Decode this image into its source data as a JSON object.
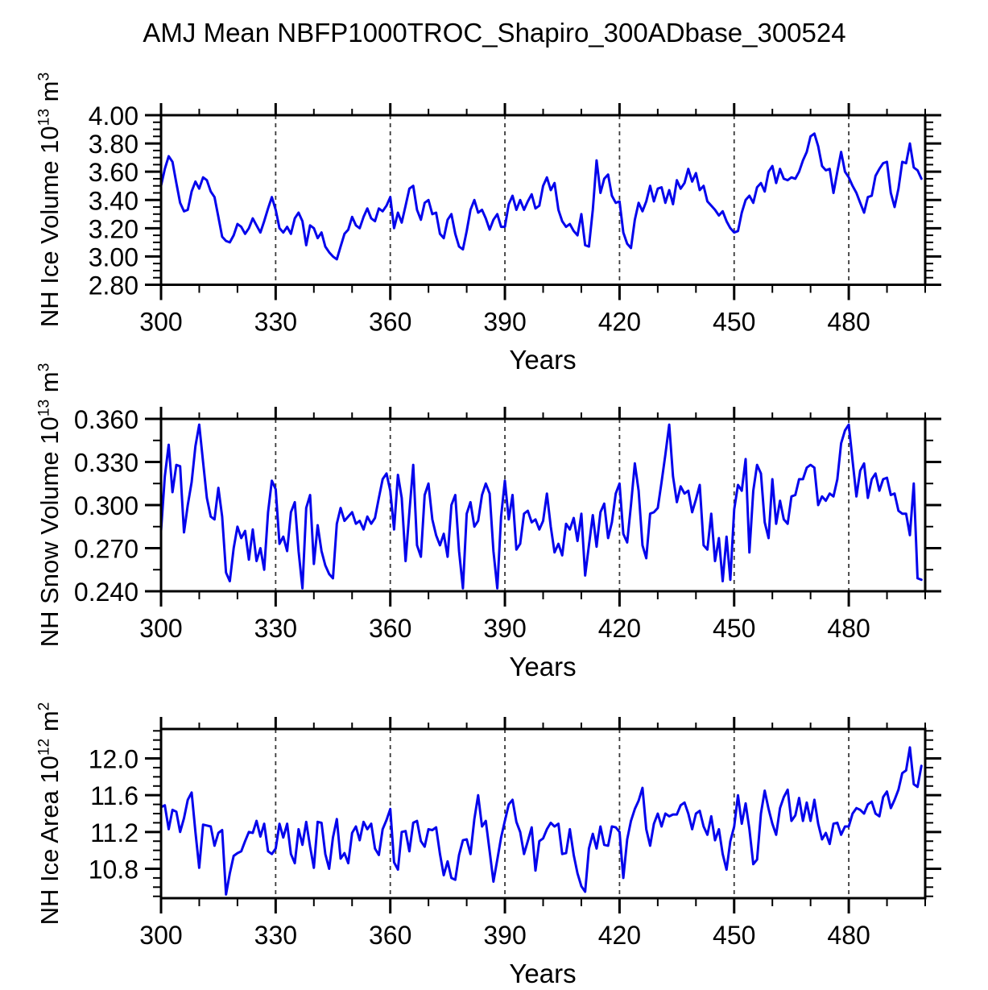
{
  "title": "AMJ Mean NBFP1000TROC_Shapiro_300ADbase_300524",
  "colors": {
    "line": "#0404EC",
    "frame": "#000000",
    "grid": "#3a3a3a",
    "background": "#ffffff"
  },
  "chart_data": [
    {
      "type": "line",
      "name": "nh-ice-volume",
      "ylabel": {
        "base": "NH Ice Volume 10",
        "exp": "13",
        "unit": " m",
        "unit_exp": "3"
      },
      "xlabel": "Years",
      "line_color": "#0404EC",
      "xlim": [
        300,
        500
      ],
      "ylim": [
        2.8,
        4.0
      ],
      "xticks": [
        300,
        330,
        360,
        390,
        420,
        450,
        480
      ],
      "xtick_labels": [
        "300",
        "330",
        "360",
        "390",
        "420",
        "450",
        "480"
      ],
      "xminor_step": 10,
      "ytick_values": [
        2.8,
        3.0,
        3.2,
        3.4,
        3.6,
        3.8,
        4.0
      ],
      "ytick_labels": [
        "2.80",
        "3.00",
        "3.20",
        "3.40",
        "3.60",
        "3.80",
        "4.00"
      ],
      "yminor_step": 0.05,
      "grid_years": [
        330,
        360,
        390,
        420,
        450,
        480
      ],
      "x_start": 300,
      "x_step": 1,
      "values": [
        3.5,
        3.62,
        3.71,
        3.67,
        3.52,
        3.38,
        3.32,
        3.33,
        3.46,
        3.53,
        3.48,
        3.56,
        3.54,
        3.46,
        3.42,
        3.28,
        3.14,
        3.11,
        3.1,
        3.15,
        3.23,
        3.21,
        3.16,
        3.2,
        3.27,
        3.22,
        3.17,
        3.25,
        3.34,
        3.42,
        3.33,
        3.2,
        3.17,
        3.21,
        3.16,
        3.27,
        3.31,
        3.25,
        3.08,
        3.22,
        3.2,
        3.13,
        3.17,
        3.07,
        3.03,
        3.0,
        2.98,
        3.07,
        3.16,
        3.19,
        3.28,
        3.22,
        3.2,
        3.28,
        3.34,
        3.27,
        3.25,
        3.34,
        3.32,
        3.36,
        3.42,
        3.2,
        3.31,
        3.24,
        3.36,
        3.48,
        3.5,
        3.33,
        3.26,
        3.38,
        3.4,
        3.3,
        3.31,
        3.16,
        3.13,
        3.26,
        3.3,
        3.16,
        3.07,
        3.05,
        3.18,
        3.33,
        3.4,
        3.31,
        3.33,
        3.27,
        3.19,
        3.26,
        3.3,
        3.21,
        3.21,
        3.37,
        3.43,
        3.33,
        3.4,
        3.33,
        3.39,
        3.44,
        3.34,
        3.36,
        3.5,
        3.56,
        3.47,
        3.52,
        3.33,
        3.25,
        3.21,
        3.23,
        3.18,
        3.15,
        3.3,
        3.08,
        3.07,
        3.33,
        3.68,
        3.45,
        3.55,
        3.58,
        3.43,
        3.38,
        3.39,
        3.17,
        3.09,
        3.06,
        3.26,
        3.38,
        3.32,
        3.39,
        3.5,
        3.39,
        3.48,
        3.49,
        3.38,
        3.47,
        3.37,
        3.54,
        3.48,
        3.52,
        3.62,
        3.53,
        3.59,
        3.47,
        3.5,
        3.39,
        3.36,
        3.33,
        3.29,
        3.32,
        3.25,
        3.2,
        3.17,
        3.18,
        3.31,
        3.4,
        3.43,
        3.38,
        3.49,
        3.52,
        3.46,
        3.6,
        3.64,
        3.52,
        3.62,
        3.55,
        3.54,
        3.56,
        3.55,
        3.6,
        3.68,
        3.74,
        3.85,
        3.87,
        3.78,
        3.64,
        3.61,
        3.62,
        3.45,
        3.6,
        3.74,
        3.6,
        3.56,
        3.5,
        3.45,
        3.38,
        3.31,
        3.42,
        3.43,
        3.57,
        3.62,
        3.66,
        3.67,
        3.45,
        3.35,
        3.48,
        3.67,
        3.66,
        3.8,
        3.63,
        3.61,
        3.55
      ]
    },
    {
      "type": "line",
      "name": "nh-snow-volume",
      "ylabel": {
        "base": "NH Snow Volume 10",
        "exp": "13",
        "unit": " m",
        "unit_exp": "3"
      },
      "xlabel": "Years",
      "line_color": "#0404EC",
      "xlim": [
        300,
        500
      ],
      "ylim": [
        0.24,
        0.36
      ],
      "xticks": [
        300,
        330,
        360,
        390,
        420,
        450,
        480
      ],
      "xtick_labels": [
        "300",
        "330",
        "360",
        "390",
        "420",
        "450",
        "480"
      ],
      "xminor_step": 10,
      "ytick_values": [
        0.24,
        0.27,
        0.3,
        0.33,
        0.36
      ],
      "ytick_labels": [
        "0.240",
        "0.270",
        "0.300",
        "0.330",
        "0.360"
      ],
      "yminor_step": 0.015,
      "grid_years": [
        330,
        360,
        390,
        420,
        450,
        480
      ],
      "x_start": 300,
      "x_step": 1,
      "values": [
        0.282,
        0.32,
        0.342,
        0.309,
        0.328,
        0.327,
        0.281,
        0.3,
        0.316,
        0.341,
        0.356,
        0.33,
        0.305,
        0.292,
        0.29,
        0.312,
        0.292,
        0.253,
        0.247,
        0.27,
        0.285,
        0.277,
        0.282,
        0.262,
        0.283,
        0.261,
        0.27,
        0.255,
        0.295,
        0.317,
        0.311,
        0.273,
        0.278,
        0.268,
        0.295,
        0.302,
        0.268,
        0.242,
        0.298,
        0.307,
        0.259,
        0.286,
        0.268,
        0.258,
        0.252,
        0.249,
        0.287,
        0.298,
        0.289,
        0.292,
        0.295,
        0.287,
        0.289,
        0.283,
        0.292,
        0.287,
        0.291,
        0.305,
        0.318,
        0.322,
        0.31,
        0.283,
        0.321,
        0.305,
        0.261,
        0.295,
        0.328,
        0.272,
        0.264,
        0.307,
        0.315,
        0.29,
        0.279,
        0.272,
        0.28,
        0.264,
        0.3,
        0.307,
        0.268,
        0.242,
        0.294,
        0.302,
        0.285,
        0.289,
        0.307,
        0.315,
        0.308,
        0.268,
        0.242,
        0.292,
        0.317,
        0.29,
        0.307,
        0.269,
        0.273,
        0.294,
        0.296,
        0.288,
        0.29,
        0.283,
        0.289,
        0.308,
        0.285,
        0.267,
        0.273,
        0.265,
        0.287,
        0.283,
        0.291,
        0.275,
        0.294,
        0.251,
        0.272,
        0.293,
        0.271,
        0.295,
        0.301,
        0.277,
        0.288,
        0.308,
        0.315,
        0.28,
        0.274,
        0.3,
        0.329,
        0.31,
        0.272,
        0.263,
        0.294,
        0.295,
        0.298,
        0.316,
        0.335,
        0.356,
        0.32,
        0.302,
        0.313,
        0.308,
        0.31,
        0.295,
        0.304,
        0.314,
        0.272,
        0.269,
        0.294,
        0.261,
        0.277,
        0.247,
        0.278,
        0.248,
        0.297,
        0.314,
        0.31,
        0.332,
        0.267,
        0.31,
        0.328,
        0.322,
        0.288,
        0.277,
        0.318,
        0.287,
        0.303,
        0.29,
        0.287,
        0.306,
        0.307,
        0.318,
        0.318,
        0.326,
        0.328,
        0.326,
        0.3,
        0.306,
        0.303,
        0.308,
        0.306,
        0.318,
        0.343,
        0.352,
        0.356,
        0.331,
        0.306,
        0.324,
        0.329,
        0.305,
        0.318,
        0.322,
        0.31,
        0.318,
        0.319,
        0.307,
        0.308,
        0.296,
        0.294,
        0.294,
        0.279,
        0.315,
        0.249,
        0.248
      ]
    },
    {
      "type": "line",
      "name": "nh-ice-area",
      "ylabel": {
        "base": "NH Ice Area 10",
        "exp": "12",
        "unit": " m",
        "unit_exp": "2"
      },
      "xlabel": "Years",
      "line_color": "#0404EC",
      "xlim": [
        300,
        500
      ],
      "ylim": [
        10.48,
        12.32
      ],
      "xticks": [
        300,
        330,
        360,
        390,
        420,
        450,
        480
      ],
      "xtick_labels": [
        "300",
        "330",
        "360",
        "390",
        "420",
        "450",
        "480"
      ],
      "xminor_step": 10,
      "ytick_values": [
        10.8,
        11.2,
        11.6,
        12.0
      ],
      "ytick_labels": [
        "10.8",
        "11.2",
        "11.6",
        "12.0"
      ],
      "yminor_step": 0.1,
      "grid_years": [
        330,
        360,
        390,
        420,
        450,
        480
      ],
      "x_start": 300,
      "x_step": 1,
      "values": [
        11.47,
        11.49,
        11.23,
        11.44,
        11.42,
        11.2,
        11.35,
        11.55,
        11.63,
        11.2,
        10.81,
        11.28,
        11.27,
        11.26,
        11.05,
        11.19,
        11.22,
        10.52,
        10.75,
        10.94,
        10.97,
        10.99,
        11.1,
        11.2,
        11.19,
        11.32,
        11.15,
        11.29,
        10.99,
        10.96,
        11.02,
        11.29,
        11.14,
        11.29,
        10.96,
        10.86,
        11.23,
        11.06,
        11.31,
        11.04,
        10.81,
        11.31,
        11.3,
        10.96,
        10.8,
        11.14,
        11.34,
        10.91,
        10.97,
        10.86,
        11.19,
        11.26,
        11.11,
        11.31,
        11.23,
        11.29,
        11.02,
        10.95,
        11.23,
        11.33,
        11.45,
        10.87,
        10.79,
        11.2,
        11.21,
        10.99,
        11.3,
        11.32,
        11.1,
        11.04,
        11.23,
        11.22,
        11.25,
        10.96,
        10.73,
        10.88,
        10.7,
        10.68,
        10.95,
        11.11,
        11.12,
        10.96,
        11.34,
        11.6,
        11.26,
        11.32,
        10.99,
        10.66,
        10.9,
        11.14,
        11.32,
        11.5,
        11.55,
        11.31,
        11.2,
        10.96,
        11.1,
        11.25,
        10.78,
        11.1,
        11.13,
        11.23,
        11.3,
        11.26,
        11.29,
        10.96,
        10.97,
        11.23,
        10.95,
        10.75,
        10.61,
        10.55,
        11.02,
        11.18,
        11.02,
        11.26,
        11.06,
        11.05,
        11.26,
        11.25,
        11.2,
        10.7,
        11.12,
        11.32,
        11.45,
        11.54,
        11.68,
        11.23,
        11.05,
        11.29,
        11.4,
        11.26,
        11.4,
        11.37,
        11.39,
        11.39,
        11.49,
        11.52,
        11.4,
        11.23,
        11.4,
        11.43,
        11.26,
        11.17,
        11.37,
        11.11,
        11.23,
        10.96,
        10.79,
        11.1,
        11.26,
        11.6,
        11.29,
        11.51,
        11.23,
        10.85,
        10.9,
        11.4,
        11.65,
        11.45,
        11.29,
        11.17,
        11.46,
        11.58,
        11.66,
        11.32,
        11.38,
        11.57,
        11.32,
        11.52,
        11.32,
        11.55,
        11.29,
        11.12,
        11.19,
        11.07,
        11.29,
        11.3,
        11.17,
        11.26,
        11.26,
        11.4,
        11.46,
        11.44,
        11.4,
        11.5,
        11.53,
        11.4,
        11.37,
        11.58,
        11.64,
        11.46,
        11.55,
        11.66,
        11.84,
        11.87,
        12.12,
        11.72,
        11.69,
        11.92
      ]
    }
  ]
}
